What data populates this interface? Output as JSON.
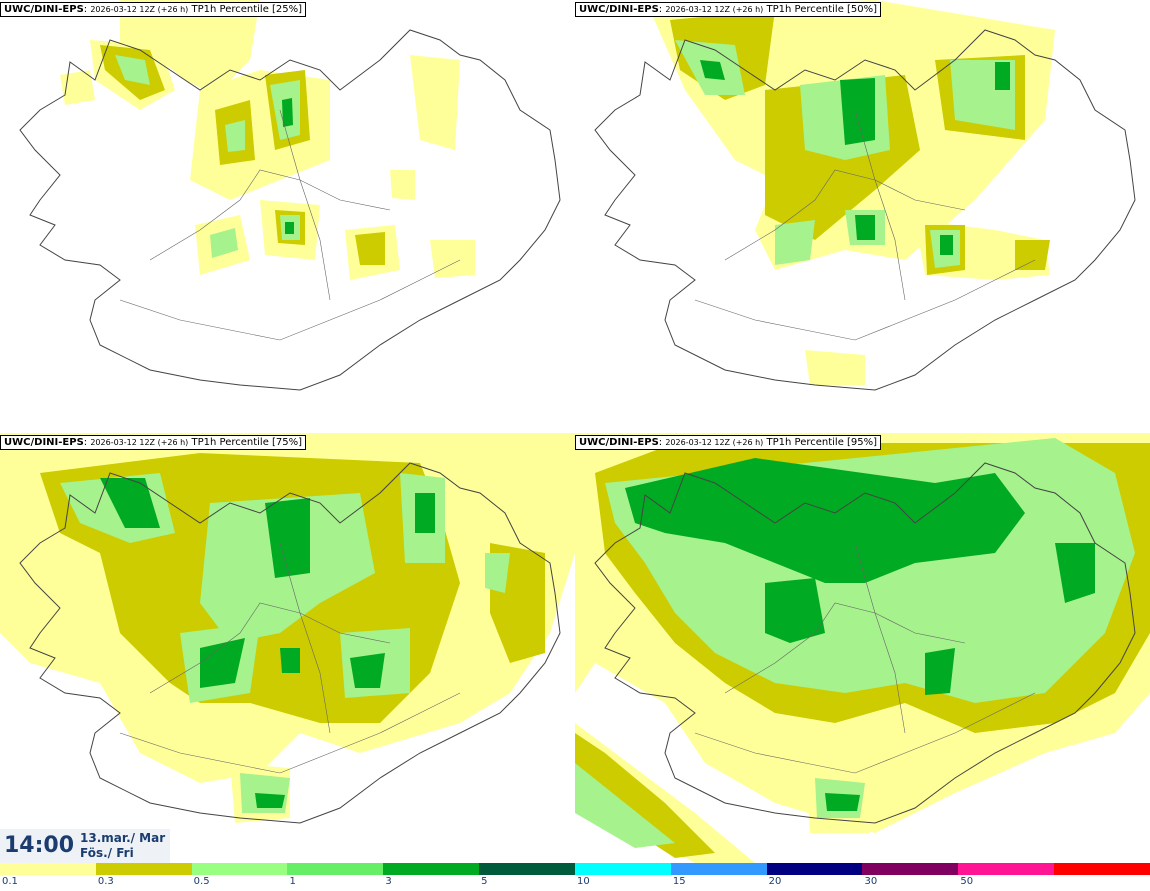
{
  "panels": [
    {
      "model": "UWC/DINI-EPS",
      "run": "2026-03-12 12Z (+26 h)",
      "param": "TP1h Percentile [25%]"
    },
    {
      "model": "UWC/DINI-EPS",
      "run": "2026-03-12 12Z (+26 h)",
      "param": "TP1h Percentile [50%]"
    },
    {
      "model": "UWC/DINI-EPS",
      "run": "2026-03-12 12Z (+26 h)",
      "param": "TP1h Percentile [75%]"
    },
    {
      "model": "UWC/DINI-EPS",
      "run": "2026-03-12 12Z (+26 h)",
      "param": "TP1h Percentile [95%]"
    }
  ],
  "valid": {
    "time": "14:00",
    "date": "13.mar./ Mar",
    "day": "Fös./ Fri"
  },
  "colorbar": {
    "labels": [
      "0.1",
      "0.3",
      "0.5",
      "1",
      "3",
      "5",
      "10",
      "15",
      "20",
      "30",
      "50"
    ],
    "colors": [
      "#ffff99",
      "#cccc00",
      "#99ff80",
      "#66ee66",
      "#00aa22",
      "#005a3c",
      "#00ffff",
      "#3399ff",
      "#000080",
      "#800060",
      "#ff1493",
      "#ff0000"
    ]
  },
  "map_colors": {
    "c1": "#ffff99",
    "c2": "#cccc00",
    "c3": "#a6f28c",
    "c4": "#00aa22",
    "coast": "#444444"
  }
}
